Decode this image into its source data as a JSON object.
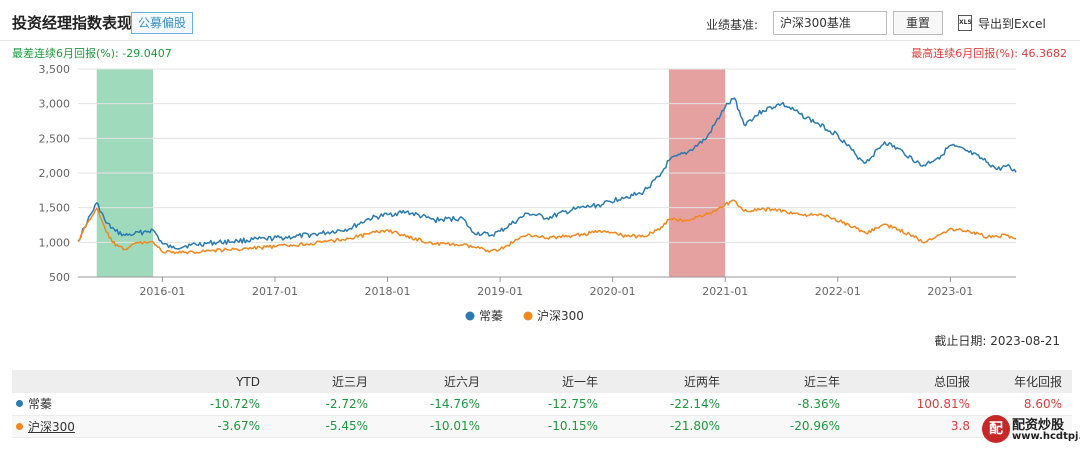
{
  "header": {
    "title": "投资经理指数表现",
    "tag": "公募偏股",
    "benchmark_label": "业绩基准:",
    "benchmark_value": "沪深300基准",
    "reset_label": "重置",
    "export_label": "导出到Excel",
    "export_icon": "XLS"
  },
  "annotations": {
    "worst_6m": "最差连续6月回报(%): -29.0407",
    "best_6m": "最高连续6月回报(%): 46.3682"
  },
  "colors": {
    "series1": "#2b7bb0",
    "series2": "#f0871f",
    "worst_band": "#8fd3b1",
    "best_band": "#e08f8f"
  },
  "chart_data": {
    "type": "line",
    "xlabel": "",
    "ylabel": "",
    "ylim": [
      500,
      3500
    ],
    "yticks": [
      "3,500",
      "3,000",
      "2,500",
      "2,000",
      "1,500",
      "1,000",
      "500"
    ],
    "xticks": [
      "2016-01",
      "2017-01",
      "2018-01",
      "2019-01",
      "2020-01",
      "2021-01",
      "2022-01",
      "2023-01"
    ],
    "x_range": [
      "2015-04",
      "2023-08"
    ],
    "highlight_worst": [
      "2015-06",
      "2015-12"
    ],
    "highlight_best": [
      "2020-07",
      "2021-01"
    ],
    "grid": true,
    "legend_position": "bottom-center",
    "series": [
      {
        "name": "常蓁",
        "points": [
          [
            "2015-04",
            1020
          ],
          [
            "2015-05",
            1300
          ],
          [
            "2015-06",
            1570
          ],
          [
            "2015-07",
            1280
          ],
          [
            "2015-08",
            1160
          ],
          [
            "2015-09",
            1100
          ],
          [
            "2015-10",
            1120
          ],
          [
            "2015-11",
            1150
          ],
          [
            "2015-12",
            1180
          ],
          [
            "2016-01",
            980
          ],
          [
            "2016-02",
            920
          ],
          [
            "2016-04",
            960
          ],
          [
            "2016-06",
            990
          ],
          [
            "2016-09",
            1020
          ],
          [
            "2016-12",
            1050
          ],
          [
            "2017-03",
            1080
          ],
          [
            "2017-06",
            1130
          ],
          [
            "2017-09",
            1200
          ],
          [
            "2017-11",
            1340
          ],
          [
            "2018-01",
            1400
          ],
          [
            "2018-03",
            1440
          ],
          [
            "2018-06",
            1320
          ],
          [
            "2018-09",
            1350
          ],
          [
            "2018-10",
            1150
          ],
          [
            "2018-12",
            1100
          ],
          [
            "2019-01",
            1160
          ],
          [
            "2019-04",
            1420
          ],
          [
            "2019-06",
            1350
          ],
          [
            "2019-09",
            1480
          ],
          [
            "2019-12",
            1550
          ],
          [
            "2020-02",
            1650
          ],
          [
            "2020-04",
            1700
          ],
          [
            "2020-06",
            1950
          ],
          [
            "2020-07",
            2180
          ],
          [
            "2020-09",
            2300
          ],
          [
            "2020-11",
            2500
          ],
          [
            "2021-01",
            2950
          ],
          [
            "2021-02",
            3080
          ],
          [
            "2021-03",
            2700
          ],
          [
            "2021-05",
            2900
          ],
          [
            "2021-07",
            3000
          ],
          [
            "2021-09",
            2850
          ],
          [
            "2021-11",
            2700
          ],
          [
            "2022-01",
            2550
          ],
          [
            "2022-03",
            2250
          ],
          [
            "2022-04",
            2150
          ],
          [
            "2022-06",
            2450
          ],
          [
            "2022-08",
            2300
          ],
          [
            "2022-10",
            2100
          ],
          [
            "2022-12",
            2250
          ],
          [
            "2023-01",
            2400
          ],
          [
            "2023-03",
            2300
          ],
          [
            "2023-05",
            2150
          ],
          [
            "2023-06",
            2050
          ],
          [
            "2023-07",
            2100
          ],
          [
            "2023-08",
            2010
          ]
        ]
      },
      {
        "name": "沪深300",
        "points": [
          [
            "2015-04",
            1010
          ],
          [
            "2015-05",
            1280
          ],
          [
            "2015-06",
            1490
          ],
          [
            "2015-07",
            1150
          ],
          [
            "2015-08",
            950
          ],
          [
            "2015-09",
            900
          ],
          [
            "2015-10",
            980
          ],
          [
            "2015-11",
            1000
          ],
          [
            "2015-12",
            1010
          ],
          [
            "2016-01",
            860
          ],
          [
            "2016-03",
            850
          ],
          [
            "2016-06",
            880
          ],
          [
            "2016-09",
            900
          ],
          [
            "2016-12",
            930
          ],
          [
            "2017-03",
            960
          ],
          [
            "2017-06",
            1000
          ],
          [
            "2017-09",
            1060
          ],
          [
            "2017-11",
            1120
          ],
          [
            "2018-01",
            1180
          ],
          [
            "2018-03",
            1080
          ],
          [
            "2018-06",
            980
          ],
          [
            "2018-09",
            960
          ],
          [
            "2018-12",
            880
          ],
          [
            "2019-01",
            900
          ],
          [
            "2019-04",
            1120
          ],
          [
            "2019-06",
            1060
          ],
          [
            "2019-09",
            1100
          ],
          [
            "2019-12",
            1160
          ],
          [
            "2020-02",
            1100
          ],
          [
            "2020-04",
            1080
          ],
          [
            "2020-06",
            1180
          ],
          [
            "2020-07",
            1330
          ],
          [
            "2020-09",
            1320
          ],
          [
            "2020-12",
            1450
          ],
          [
            "2021-01",
            1550
          ],
          [
            "2021-02",
            1600
          ],
          [
            "2021-03",
            1450
          ],
          [
            "2021-06",
            1480
          ],
          [
            "2021-09",
            1400
          ],
          [
            "2021-12",
            1380
          ],
          [
            "2022-03",
            1200
          ],
          [
            "2022-04",
            1130
          ],
          [
            "2022-06",
            1260
          ],
          [
            "2022-09",
            1100
          ],
          [
            "2022-10",
            1000
          ],
          [
            "2022-12",
            1120
          ],
          [
            "2023-01",
            1200
          ],
          [
            "2023-03",
            1160
          ],
          [
            "2023-05",
            1080
          ],
          [
            "2023-07",
            1100
          ],
          [
            "2023-08",
            1050
          ]
        ]
      }
    ]
  },
  "cutoff_date": "截止日期: 2023-08-21",
  "table": {
    "headers": [
      "",
      "YTD",
      "近三月",
      "近六月",
      "近一年",
      "近两年",
      "近三年",
      "总回报",
      "年化回报"
    ],
    "rows": [
      {
        "name": "常蓁",
        "ytd": "-10.72%",
        "m3": "-2.72%",
        "m6": "-14.76%",
        "y1": "-12.75%",
        "y2": "-22.14%",
        "y3": "-8.36%",
        "total": "100.81%",
        "annual": "8.60%"
      },
      {
        "name": "沪深300",
        "ytd": "-3.67%",
        "m3": "-5.45%",
        "m6": "-10.01%",
        "y1": "-10.15%",
        "y2": "-21.80%",
        "y3": "-20.96%",
        "total": "3.8",
        "annual": ""
      }
    ]
  },
  "watermark": {
    "logo_char": "配",
    "line1": "配资炒股",
    "line2": "www.hcdtpj.com"
  }
}
